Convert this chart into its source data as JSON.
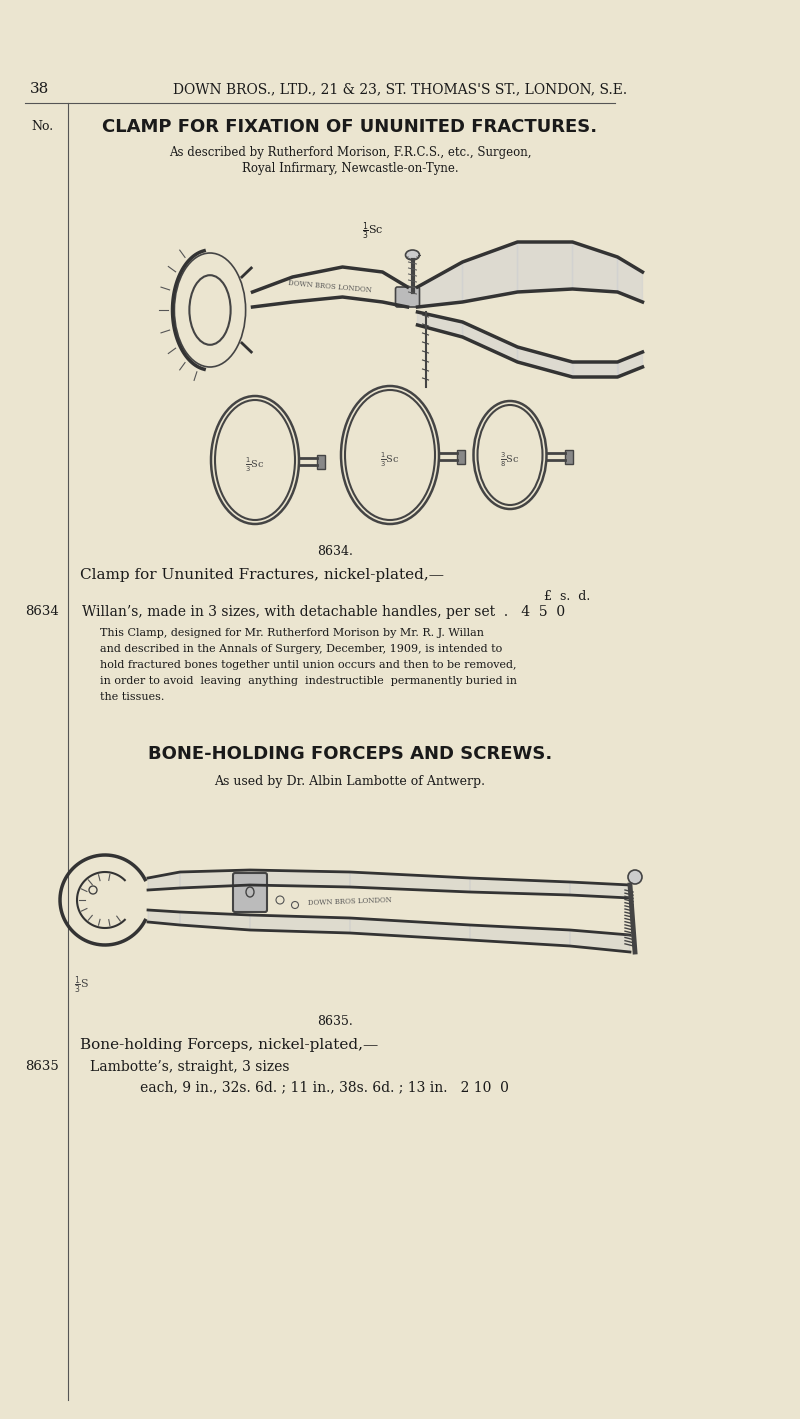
{
  "bg_color": "#EBE5D0",
  "text_color": "#1a1a1a",
  "dark_color": "#2a2a2a",
  "page_number": "38",
  "header_text": "DOWN BROS., LTD., 21 & 23, ST. THOMAS'S ST., LONDON, S.E.",
  "col1_label": "No.",
  "section1_title": "CLAMP FOR FIXATION OF UNUNITED FRACTURES.",
  "section1_sub1": "As described by Rutherford Morison, F.R.C.S., etc., Surgeon,",
  "section1_sub2": "Royal Infirmary, Newcastle-on-Tyne.",
  "figure1_caption": "8634.",
  "item1_desc": "Clamp for Ununited Fractures, nickel-plated,—",
  "item1_currency": "£  s.  d.",
  "item1_number": "8634",
  "item1_text": "Willan’s, made in 3 sizes, with detachable handles, per set  .   4  5  0",
  "item1_body_lines": [
    "This Clamp, designed for Mr. Rutherford Morison by Mr. R. J. Willan",
    "and described in the Annals of Surgery, December, 1909, is intended to",
    "hold fractured bones together until union occurs and then to be removed,",
    "in order to avoid  leaving  anything  indestructible  permanently buried in",
    "the tissues."
  ],
  "section2_title": "BONE-HOLDING FORCEPS AND SCREWS.",
  "section2_sub": "As used by Dr. Albin Lambotte of Antwerp.",
  "figure2_caption": "8635.",
  "item2_number": "8635",
  "item2_desc": "Bone-holding Forceps, nickel-plated,—",
  "item2_text1": "Lambotte’s, straight, 3 sizes",
  "item2_text2": "each, 9 in., 32s. 6d. ; 11 in., 38s. 6d. ; 13 in.   2 10  0"
}
